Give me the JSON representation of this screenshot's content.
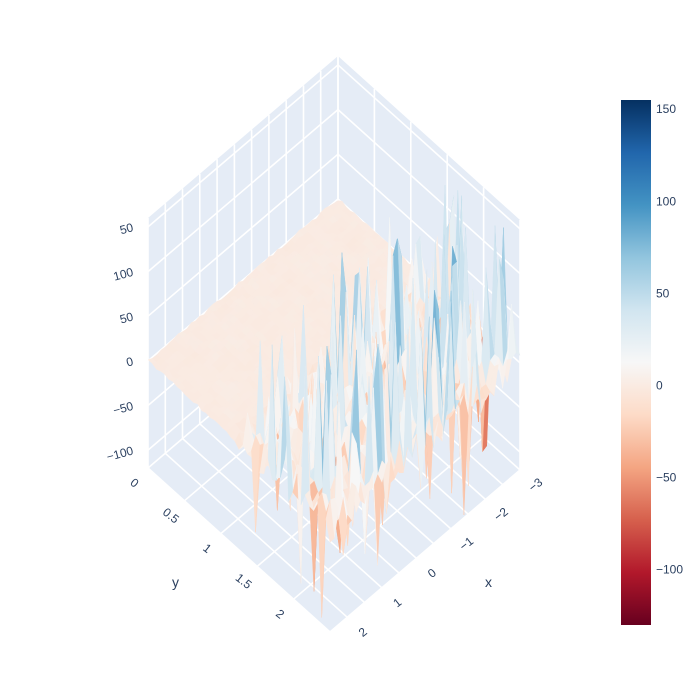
{
  "chart_data": {
    "type": "surface",
    "colorscale": "RdBu",
    "colorscale_stops": [
      "#67001f",
      "#b2182b",
      "#d6604d",
      "#f4a582",
      "#fddbc7",
      "#f7f7f7",
      "#d1e5f0",
      "#92c5de",
      "#4393c3",
      "#2166ac",
      "#053061"
    ],
    "z_range": [
      -130,
      155
    ],
    "x_axis": {
      "title": "x",
      "range": [
        -3,
        2.5
      ],
      "ticks": [
        "−3",
        "−2",
        "−1",
        "0",
        "1",
        "2"
      ]
    },
    "y_axis": {
      "title": "y",
      "range": [
        0,
        2.5
      ],
      "ticks": [
        "0",
        "0.5",
        "1",
        "1.5",
        "2"
      ]
    },
    "z_axis": {
      "title": "",
      "range": [
        -120,
        160
      ],
      "ticks": [
        "−100",
        "−50",
        "0",
        "50",
        "100",
        "150"
      ],
      "visible_partial_top_label": "50"
    },
    "flat_region": {
      "y_range": [
        0,
        1.1
      ],
      "z": 0
    },
    "noisy_region": {
      "y_range": [
        1.1,
        2.5
      ],
      "z_spread": [
        -130,
        155
      ]
    },
    "colorbar": {
      "ticks": [
        "150",
        "100",
        "50",
        "0",
        "−50",
        "−100"
      ],
      "tick_values": [
        150,
        100,
        50,
        0,
        -50,
        -100
      ]
    },
    "grid": true,
    "background": "#e5ecf6"
  }
}
